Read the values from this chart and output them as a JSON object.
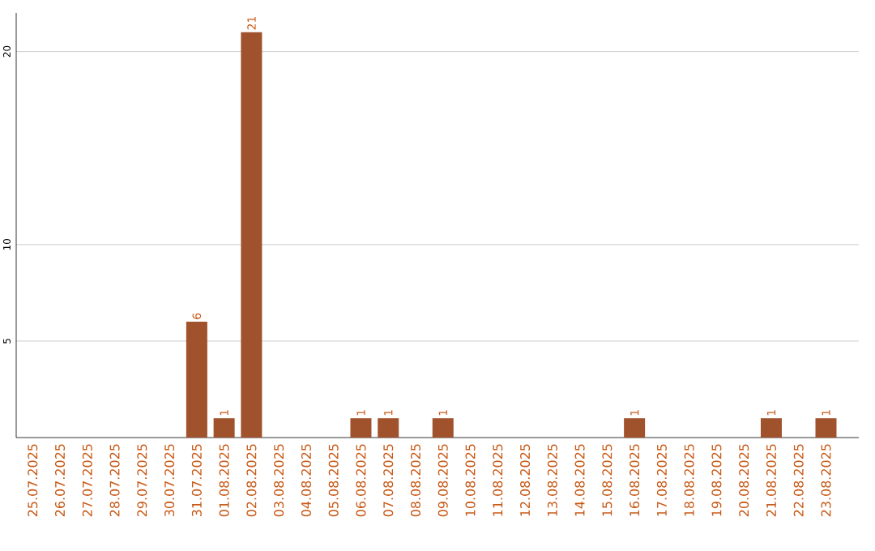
{
  "chart_data": {
    "type": "bar",
    "categories": [
      "25.07.2025",
      "26.07.2025",
      "27.07.2025",
      "28.07.2025",
      "29.07.2025",
      "30.07.2025",
      "31.07.2025",
      "01.08.2025",
      "02.08.2025",
      "03.08.2025",
      "04.08.2025",
      "05.08.2025",
      "06.08.2025",
      "07.08.2025",
      "08.08.2025",
      "09.08.2025",
      "10.08.2025",
      "11.08.2025",
      "12.08.2025",
      "13.08.2025",
      "14.08.2025",
      "15.08.2025",
      "16.08.2025",
      "17.08.2025",
      "18.08.2025",
      "19.08.2025",
      "20.08.2025",
      "21.08.2025",
      "22.08.2025",
      "23.08.2025"
    ],
    "values": [
      0,
      0,
      0,
      0,
      0,
      0,
      6,
      1,
      21,
      0,
      0,
      0,
      1,
      1,
      0,
      1,
      0,
      0,
      0,
      0,
      0,
      0,
      1,
      0,
      0,
      0,
      0,
      1,
      0,
      1
    ],
    "value_labels": [
      null,
      null,
      null,
      null,
      null,
      null,
      "6",
      "1",
      "21",
      null,
      null,
      null,
      "1",
      "1",
      null,
      "1",
      null,
      null,
      null,
      null,
      null,
      null,
      "1",
      null,
      null,
      null,
      null,
      "1",
      null,
      "1"
    ],
    "color": "#a0522d",
    "ylim": [
      0,
      22
    ],
    "yticks": [
      5,
      10,
      20
    ],
    "grid": "y"
  }
}
